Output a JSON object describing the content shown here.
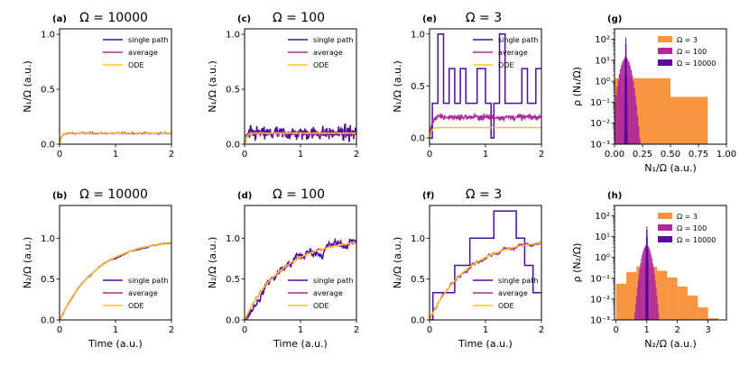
{
  "colors": {
    "single": "#4b0c9b",
    "average": "#b0299c",
    "ode": "#f8c325",
    "hist3": "#f89540",
    "hist100": "#b0299c",
    "hist10000": "#5c0aa0"
  },
  "legend_line": [
    "single path",
    "average",
    "ODE"
  ],
  "legend_hist": [
    "Ω = 3",
    "Ω = 100",
    "Ω = 10000"
  ],
  "chart_data": [
    {
      "id": "a",
      "type": "line",
      "panel_label": "(a)",
      "title": "Ω = 10000",
      "ylabel": "N₁/Ω (a.u.)",
      "xlabel": "",
      "xlim": [
        0,
        2
      ],
      "ylim": [
        0,
        1.05
      ],
      "xticks": [
        0,
        1,
        2
      ],
      "yticks": [
        0,
        0.5,
        1.0
      ],
      "ytick_labels": [
        "0.0",
        "0.5",
        "1.0"
      ],
      "kind": "n1",
      "omega": 10000,
      "steady": 0.1,
      "noise": 0.004,
      "avg_level": 0.1,
      "avg_noise": 0.002
    },
    {
      "id": "c",
      "type": "line",
      "panel_label": "(c)",
      "title": "Ω = 100",
      "ylabel": "N₁/Ω (a.u.)",
      "xlabel": "",
      "xlim": [
        0,
        2
      ],
      "ylim": [
        0,
        1.05
      ],
      "xticks": [
        0,
        1,
        2
      ],
      "yticks": [
        0,
        0.5,
        1.0
      ],
      "ytick_labels": [
        "0.0",
        "0.5",
        "1.0"
      ],
      "kind": "n1",
      "omega": 100,
      "steady": 0.1,
      "noise": 0.045,
      "avg_level": 0.1,
      "avg_noise": 0.01
    },
    {
      "id": "e",
      "type": "line",
      "panel_label": "(e)",
      "title": "Ω = 3",
      "ylabel": "N₁/Ω (a.u.)",
      "xlabel": "",
      "xlim": [
        0,
        2
      ],
      "ylim": [
        -0.06,
        1.05
      ],
      "xticks": [
        0,
        1,
        2
      ],
      "yticks": [
        0,
        0.5,
        1.0
      ],
      "ytick_labels": [
        "0.0",
        "0.5",
        "1.0"
      ],
      "kind": "n1e",
      "omega": 3,
      "steady": 0.1,
      "avg_level": 0.2,
      "avg_noise": 0.02,
      "single_path_levels": [
        0,
        0.333,
        0.667,
        1.0
      ]
    },
    {
      "id": "b",
      "type": "line",
      "panel_label": "(b)",
      "title": "Ω = 10000",
      "ylabel": "N₂/Ω (a.u.)",
      "xlabel": "Time (a.u.)",
      "xlim": [
        0,
        2
      ],
      "ylim": [
        0,
        1.4
      ],
      "xticks": [
        0,
        1,
        2
      ],
      "yticks": [
        0,
        0.5,
        1.0
      ],
      "ytick_labels": [
        "0.0",
        "0.5",
        "1.0"
      ],
      "kind": "n2",
      "omega": 10000,
      "noise": 0.003,
      "avg_noise": 0.002,
      "legend_pos": "bottom-right"
    },
    {
      "id": "d",
      "type": "line",
      "panel_label": "(d)",
      "title": "Ω = 100",
      "ylabel": "N₂/Ω (a.u.)",
      "xlabel": "Time (a.u.)",
      "xlim": [
        0,
        2
      ],
      "ylim": [
        0,
        1.4
      ],
      "xticks": [
        0,
        1,
        2
      ],
      "yticks": [
        0,
        0.5,
        1.0
      ],
      "ytick_labels": [
        "0.0",
        "0.5",
        "1.0"
      ],
      "kind": "n2",
      "omega": 100,
      "noise": 0.03,
      "avg_noise": 0.008,
      "legend_pos": "bottom-right"
    },
    {
      "id": "f",
      "type": "line",
      "panel_label": "(f)",
      "title": "Ω = 3",
      "ylabel": "N₂/Ω (a.u.)",
      "xlabel": "Time (a.u.)",
      "xlim": [
        0,
        2
      ],
      "ylim": [
        0,
        1.4
      ],
      "xticks": [
        0,
        1,
        2
      ],
      "yticks": [
        0,
        0.5,
        1.0
      ],
      "ytick_labels": [
        "0.0",
        "0.5",
        "1.0"
      ],
      "kind": "n2f",
      "omega": 3,
      "avg_noise": 0.015,
      "legend_pos": "bottom-right",
      "single_path_levels": [
        0,
        0.333,
        0.667,
        1.0,
        1.333
      ]
    },
    {
      "id": "g",
      "type": "bar",
      "panel_label": "(g)",
      "title": "",
      "ylabel": "ρ (N₁/Ω)",
      "xlabel": "N₁/Ω (a.u.)",
      "xlim": [
        0,
        1.0
      ],
      "ylog": true,
      "ylim_exp": [
        -3,
        2.5
      ],
      "xticks": [
        0,
        0.25,
        0.5,
        0.75,
        1.0
      ],
      "xtick_labels": [
        "0.00",
        "0.25",
        "0.50",
        "0.75",
        "1.00"
      ],
      "yticks_exp": [
        -3,
        -2,
        -1,
        0,
        1,
        2
      ],
      "ytick_labels": [
        "10⁻³",
        "10⁻²",
        "10⁻¹",
        "10⁰",
        "10¹",
        "10²"
      ],
      "series": [
        {
          "name": "Ω = 3",
          "bins": [
            [
              0,
              0.167,
              1.4
            ],
            [
              0.167,
              0.5,
              1.4
            ],
            [
              0.5,
              0.833,
              0.18
            ],
            [
              0.833,
              1.0,
              0.0004
            ]
          ]
        },
        {
          "name": "Ω = 100",
          "gauss": {
            "mu": 0.1,
            "sigma": 0.03,
            "lo": 0.0,
            "hi": 0.25,
            "n": 26
          }
        },
        {
          "name": "Ω = 10000",
          "gauss": {
            "mu": 0.1,
            "sigma": 0.003,
            "lo": 0.085,
            "hi": 0.115,
            "n": 12
          }
        }
      ]
    },
    {
      "id": "h",
      "type": "bar",
      "panel_label": "(h)",
      "title": "",
      "ylabel": "ρ (N₂/Ω)",
      "xlabel": "N₂/Ω (a.u.)",
      "xlim": [
        -0.05,
        3.6
      ],
      "ylog": true,
      "ylim_exp": [
        -3,
        2.5
      ],
      "xticks": [
        0,
        1,
        2,
        3
      ],
      "xtick_labels": [
        "0",
        "1",
        "2",
        "3"
      ],
      "yticks_exp": [
        -3,
        -2,
        -1,
        0,
        1,
        2
      ],
      "ytick_labels": [
        "10⁻³",
        "10⁻²",
        "10⁻¹",
        "10⁰",
        "10¹",
        "10²"
      ],
      "series": [
        {
          "name": "Ω = 3",
          "bins": [
            [
              0,
              0.333,
              0.055
            ],
            [
              0.333,
              0.667,
              0.2
            ],
            [
              0.667,
              1.0,
              0.38
            ],
            [
              1.0,
              1.333,
              0.36
            ],
            [
              1.333,
              1.667,
              0.23
            ],
            [
              1.667,
              2.0,
              0.11
            ],
            [
              2.0,
              2.333,
              0.04
            ],
            [
              2.333,
              2.667,
              0.015
            ],
            [
              2.667,
              3.0,
              0.004
            ],
            [
              3.0,
              3.333,
              0.0012
            ]
          ]
        },
        {
          "name": "Ω = 100",
          "gauss": {
            "mu": 1.0,
            "sigma": 0.1,
            "lo": 0.6,
            "hi": 1.4,
            "n": 30
          }
        },
        {
          "name": "Ω = 10000",
          "gauss": {
            "mu": 1.0,
            "sigma": 0.012,
            "lo": 0.955,
            "hi": 1.045,
            "n": 12
          }
        }
      ]
    }
  ]
}
